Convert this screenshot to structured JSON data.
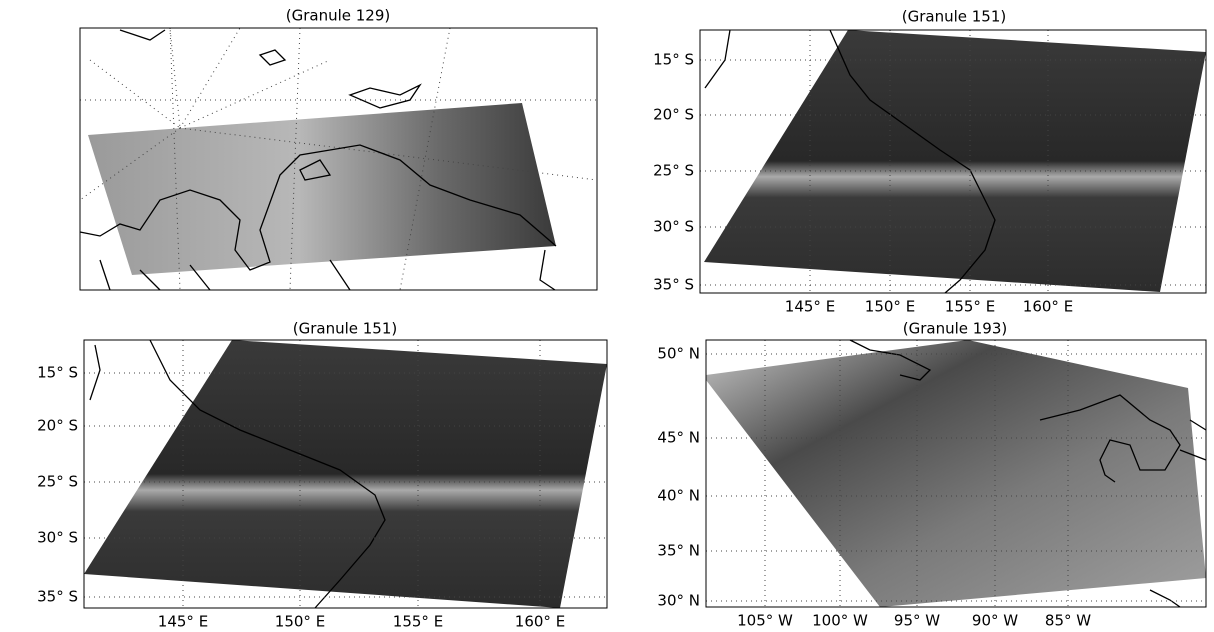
{
  "panels": [
    {
      "title": "(Granule 129)"
    },
    {
      "title": "(Granule 151)",
      "y_labels": [
        "15° S",
        "20° S",
        "25° S",
        "30° S",
        "35° S"
      ],
      "x_labels": [
        "145° E",
        "150° E",
        "155° E",
        "160° E"
      ]
    },
    {
      "title": "(Granule 151)",
      "y_labels": [
        "15° S",
        "20° S",
        "25° S",
        "30° S",
        "35° S"
      ],
      "x_labels": [
        "145° E",
        "150° E",
        "155° E",
        "160° E"
      ]
    },
    {
      "title": "(Granule 193)",
      "y_labels": [
        "50° N",
        "45° N",
        "40° N",
        "35° N",
        "30° N"
      ],
      "x_labels": [
        "105° W",
        "100° W",
        "95° W",
        "90° W",
        "85° W"
      ]
    }
  ]
}
